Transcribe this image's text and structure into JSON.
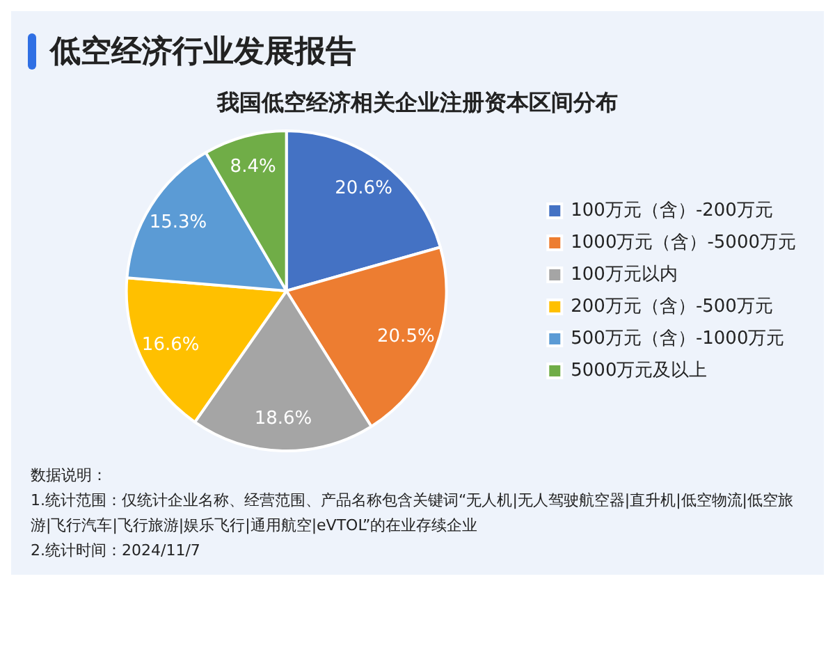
{
  "chart_data": {
    "type": "pie",
    "title": "低空经济行业发展报告",
    "subtitle": "我国低空经济相关企业注册资本区间分布",
    "categories": [
      "100万元（含）-200万元",
      "1000万元（含）-5000万元",
      "100万元以内",
      "200万元（含）-500万元",
      "500万元（含）-1000万元",
      "5000万元及以上"
    ],
    "values": [
      20.6,
      20.5,
      18.6,
      16.6,
      15.3,
      8.4
    ],
    "colors": [
      "#4472c4",
      "#ed7d31",
      "#a5a5a5",
      "#ffc000",
      "#5b9bd5",
      "#70ad47"
    ],
    "value_labels": [
      "20.6%",
      "20.5%",
      "18.6%",
      "16.6%",
      "15.3%",
      "8.4%"
    ],
    "legend": "right",
    "annotations": [
      "数据说明：",
      "1.统计范围：仅统计企业名称、经营范围、产品名称包含关键词“无人机|无人驾驶航空器|直升机|低空物流|低空旅游|飞行汽车|飞行旅游|娱乐飞行|通用航空|eVTOL”的在业存续企业",
      "2.统计时间：2024/11/7"
    ]
  }
}
